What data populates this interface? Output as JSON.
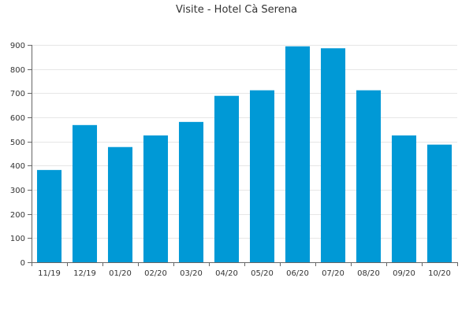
{
  "chart_data": {
    "type": "bar",
    "title": "Visite - Hotel Cà Serena",
    "xlabel": "",
    "ylabel": "",
    "categories": [
      "11/19",
      "12/19",
      "01/20",
      "02/20",
      "03/20",
      "04/20",
      "05/20",
      "06/20",
      "07/20",
      "08/20",
      "09/20",
      "10/20"
    ],
    "values": [
      382,
      568,
      477,
      525,
      581,
      689,
      712,
      894,
      886,
      712,
      525,
      487
    ],
    "ylim": [
      0,
      900
    ],
    "yticks": [
      0,
      100,
      200,
      300,
      400,
      500,
      600,
      700,
      800,
      900
    ],
    "grid": true,
    "legend": "none",
    "bar_color": "#0099d6"
  }
}
